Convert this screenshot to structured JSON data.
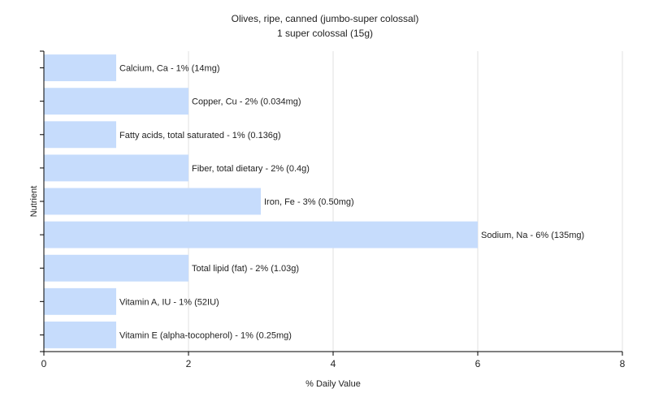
{
  "chart_data": {
    "type": "bar",
    "orientation": "horizontal",
    "title": "Olives, ripe, canned (jumbo-super colossal)",
    "subtitle": "1 super colossal (15g)",
    "xlabel": "% Daily Value",
    "ylabel": "Nutrient",
    "xlim": [
      0,
      8
    ],
    "xticks": [
      "0",
      "2",
      "4",
      "6",
      "8"
    ],
    "grid": true,
    "legend": "none",
    "bar_color": "#c6dcfc",
    "categories": [
      "Calcium, Ca",
      "Copper, Cu",
      "Fatty acids, total saturated",
      "Fiber, total dietary",
      "Iron, Fe",
      "Sodium, Na",
      "Total lipid (fat)",
      "Vitamin A, IU",
      "Vitamin E (alpha-tocopherol)"
    ],
    "values": [
      1,
      2,
      1,
      2,
      3,
      6,
      2,
      1,
      1
    ],
    "data_labels": [
      "Calcium, Ca - 1% (14mg)",
      "Copper, Cu - 2% (0.034mg)",
      "Fatty acids, total saturated - 1% (0.136g)",
      "Fiber, total dietary - 2% (0.4g)",
      "Iron, Fe - 3% (0.50mg)",
      "Sodium, Na - 6% (135mg)",
      "Total lipid (fat) - 2% (1.03g)",
      "Vitamin A, IU - 1% (52IU)",
      "Vitamin E (alpha-tocopherol) - 1% (0.25mg)"
    ]
  }
}
